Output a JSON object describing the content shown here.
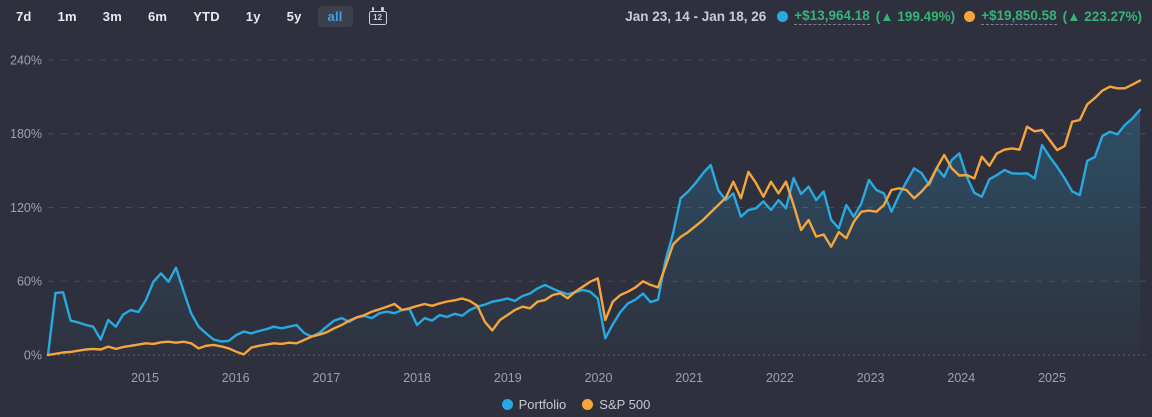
{
  "toolbar": {
    "ranges": [
      "7d",
      "1m",
      "3m",
      "6m",
      "YTD",
      "1y",
      "5y",
      "all"
    ],
    "active_range": "all",
    "calendar_label": "12"
  },
  "header": {
    "date_range": "Jan 23, 14 - Jan 18, 26",
    "stats": [
      {
        "series": "Portfolio",
        "dot_color": "#29a9e1",
        "change": "+$13,964.18",
        "pct": "(▲ 199.49%)"
      },
      {
        "series": "S&P 500",
        "dot_color": "#f5a53d",
        "change": "+$19,850.58",
        "pct": "(▲ 223.27%)"
      }
    ],
    "positive_color": "#36b377"
  },
  "legend": [
    {
      "label": "Portfolio",
      "color": "#29a9e1"
    },
    {
      "label": "S&P 500",
      "color": "#f5a53d"
    }
  ],
  "colors": {
    "background": "#2e313d",
    "grid_dashed": "#454a59",
    "grid_zero": "#5b606f",
    "axis_text": "#9aa1ad",
    "portfolio_blue": "#29a9e1",
    "sp500_orange": "#f5a53d",
    "active_tab_blue": "#41a0e3",
    "gain_green": "#36b377"
  },
  "chart_data": {
    "type": "line",
    "title": "",
    "xlabel": "",
    "ylabel": "",
    "x_start": "Jan 23, 2014",
    "x_end": "Jan 18, 2026",
    "x_tick_labels": [
      "2015",
      "2016",
      "2017",
      "2018",
      "2019",
      "2020",
      "2021",
      "2022",
      "2023",
      "2024",
      "2025"
    ],
    "y_ticks": [
      {
        "label": "0%",
        "value": 0
      },
      {
        "label": "60%",
        "value": 60
      },
      {
        "label": "120%",
        "value": 120
      },
      {
        "label": "180%",
        "value": 180
      },
      {
        "label": "240%",
        "value": 240
      }
    ],
    "ylim": [
      0,
      240
    ],
    "grid": "horizontal-dashed",
    "legend_position": "bottom-center",
    "sampling": "monthly, Jan 2014 to Jan 2026, values are cumulative % return",
    "series": [
      {
        "name": "Portfolio",
        "color": "#29a9e1",
        "area_fill": true,
        "final_label": "+199.49%",
        "values": [
          0,
          50.5,
          51,
          28,
          26.5,
          24.5,
          23,
          12.5,
          28.5,
          23,
          33,
          36.5,
          35,
          44.7,
          59.6,
          66.4,
          59.6,
          71,
          52,
          34,
          23,
          17.5,
          12.5,
          11,
          11.5,
          16.3,
          19,
          17.6,
          19.5,
          21,
          23,
          21.7,
          23,
          24.4,
          18,
          15,
          18,
          23,
          28,
          30,
          27,
          30.6,
          31.7,
          30,
          34,
          35.2,
          34,
          36.6,
          37.5,
          24.4,
          30,
          28,
          32.5,
          31,
          33.5,
          32,
          36.6,
          39.3,
          41,
          43.4,
          44.5,
          46,
          44,
          48,
          50,
          54.2,
          57,
          54,
          51.5,
          49.5,
          51,
          53,
          51.5,
          46,
          13.6,
          25,
          35,
          42,
          45,
          50,
          43,
          45,
          77,
          99,
          127.5,
          133,
          140,
          148,
          154.6,
          134,
          126,
          131.5,
          112.5,
          118,
          119.3,
          125,
          118,
          126,
          119.3,
          144,
          131,
          136.9,
          126,
          133,
          110,
          103.1,
          122,
          112.5,
          123.4,
          142.4,
          134.2,
          131.5,
          116.6,
          130,
          141,
          151.8,
          148,
          138.3,
          152,
          145,
          158.6,
          164,
          145,
          132,
          128.8,
          143,
          146.4,
          150.5,
          147.8,
          147.5,
          147.8,
          143.7,
          170.8,
          161.3,
          153,
          143.7,
          133,
          130.2,
          158,
          161,
          178,
          181.6,
          179.5,
          187.1,
          192.5,
          199.49
        ]
      },
      {
        "name": "S&P 500",
        "color": "#f5a53d",
        "area_fill": false,
        "final_label": "+223.27%",
        "values": [
          0,
          1,
          2,
          2.5,
          3.5,
          4.5,
          5,
          4.5,
          6.8,
          5,
          6.5,
          7.5,
          8.5,
          9.5,
          9,
          10.3,
          10.8,
          10,
          10.8,
          9.5,
          5.4,
          7.5,
          8.2,
          7,
          5.4,
          2.7,
          0.5,
          6,
          7.5,
          8.5,
          9.5,
          9,
          10,
          9.5,
          12.2,
          15,
          16.5,
          18.5,
          21.7,
          24.4,
          27.9,
          30.6,
          32.5,
          35.2,
          37.2,
          39.3,
          41.5,
          36.6,
          38,
          39.9,
          41.5,
          40,
          42,
          43.5,
          44.5,
          46,
          44,
          40,
          27,
          20,
          28.5,
          32.5,
          36.6,
          39.3,
          38,
          43.4,
          44.7,
          48.8,
          50.2,
          46.1,
          51.5,
          55.6,
          59.6,
          62.3,
          28.5,
          43.4,
          48.8,
          51.5,
          55,
          60,
          57,
          55,
          72,
          90,
          96,
          100,
          105,
          110,
          116,
          122,
          128,
          141,
          127.5,
          149,
          140,
          128.8,
          141,
          131.5,
          141,
          122,
          101.7,
          109.8,
          96.3,
          98,
          88.1,
          100,
          95,
          108.4,
          116.6,
          117.5,
          116.6,
          122,
          134.2,
          135.6,
          134.2,
          127.5,
          133,
          140,
          152,
          162.7,
          152,
          146,
          146.4,
          143.7,
          161.3,
          154,
          164,
          167,
          168.1,
          167,
          185.7,
          182,
          183,
          174.9,
          166.7,
          170,
          189.8,
          191.2,
          204,
          209,
          215,
          218.3,
          217,
          217,
          220,
          223.27
        ]
      }
    ]
  }
}
